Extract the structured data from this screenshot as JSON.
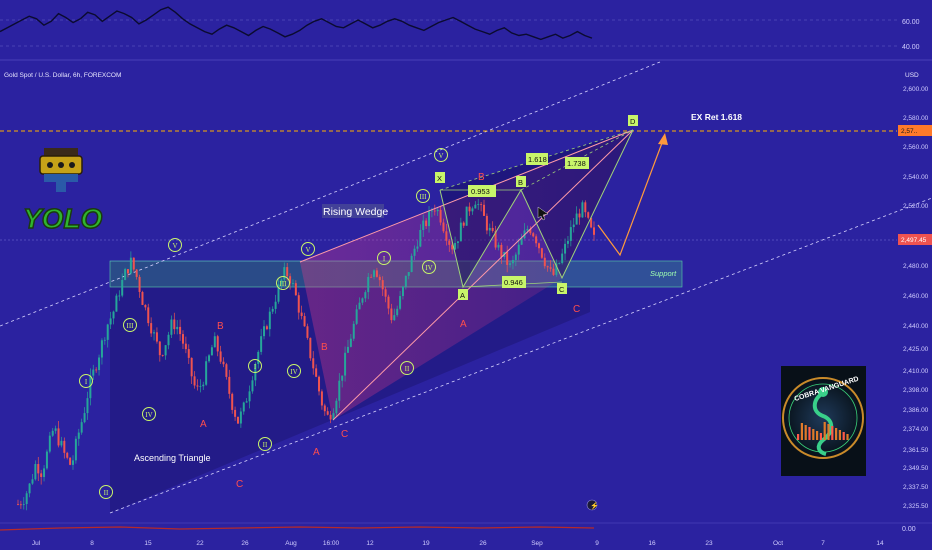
{
  "header": {
    "symbol_title": "Gold Spot / U.S. Dollar, 6h, FOREXCOM",
    "currency": "USD",
    "last_price": "2,497.45"
  },
  "colors": {
    "background": "#2b22a0",
    "candle_up": "#26a69a",
    "candle_down": "#ef5350",
    "label_green": "#c8f56a",
    "label_red": "#ff4d4d",
    "wedge_line": "#ff9aa8",
    "ex_line": "#ffb000"
  },
  "chart_data": [
    {
      "type": "line",
      "name": "rsi-indicator-pane",
      "yticks": [
        "60.00",
        "40.00"
      ],
      "ylim": [
        30,
        75
      ],
      "values": [
        52,
        55,
        58,
        61,
        64,
        62,
        57,
        60,
        66,
        63,
        59,
        62,
        67,
        65,
        60,
        64,
        68,
        66,
        63,
        58,
        61,
        65,
        69,
        71,
        67,
        62,
        58,
        55,
        52,
        50,
        54,
        57,
        55,
        52,
        49,
        53,
        56,
        54,
        51,
        48,
        50,
        53,
        57,
        60,
        62,
        59,
        56,
        55,
        58,
        61,
        58,
        55,
        57,
        60,
        62,
        60,
        57,
        55,
        53,
        56,
        59,
        61,
        63,
        60,
        57,
        54,
        52,
        50,
        53,
        55,
        51,
        49,
        50,
        48,
        46,
        48,
        50,
        47,
        49,
        52,
        49,
        47
      ]
    },
    {
      "type": "candlestick",
      "name": "gold-price",
      "ylim": [
        2318,
        2618
      ],
      "price_ticks": [
        "2,600.00",
        "2,580.00",
        "2,560.00",
        "2,540.00",
        "2,520.00",
        "2,480.00",
        "2,460.00",
        "2,440.00",
        "2,425.00",
        "2,410.00",
        "2,398.00",
        "2,386.00",
        "2,374.00",
        "2,361.50",
        "2,349.50",
        "2,337.50",
        "2,325.50"
      ],
      "price_tick_values": [
        2600,
        2580,
        2560,
        2540,
        2520,
        2480,
        2460,
        2440,
        2425,
        2410,
        2398,
        2386,
        2374,
        2361.5,
        2349.5,
        2337.5,
        2325.5
      ],
      "ex_price_tag": "2,57..",
      "x_ticks": [
        "Jul",
        "8",
        "15",
        "22",
        "26",
        "Aug",
        "16:00",
        "12",
        "19",
        "26",
        "Sep",
        "9",
        "16",
        "23",
        "Oct",
        "7",
        "14"
      ],
      "close_path": [
        2326,
        2330,
        2338,
        2352,
        2346,
        2360,
        2374,
        2366,
        2356,
        2350,
        2368,
        2382,
        2400,
        2412,
        2426,
        2440,
        2448,
        2462,
        2474,
        2482,
        2472,
        2456,
        2444,
        2432,
        2420,
        2430,
        2442,
        2438,
        2426,
        2410,
        2396,
        2402,
        2416,
        2430,
        2420,
        2404,
        2390,
        2378,
        2386,
        2400,
        2416,
        2430,
        2442,
        2454,
        2466,
        2476,
        2470,
        2456,
        2440,
        2424,
        2408,
        2392,
        2380,
        2386,
        2400,
        2416,
        2432,
        2446,
        2460,
        2472,
        2480,
        2470,
        2456,
        2444,
        2452,
        2466,
        2480,
        2494,
        2504,
        2510,
        2520,
        2514,
        2502,
        2492,
        2498,
        2510,
        2518,
        2524,
        2516,
        2506,
        2498,
        2490,
        2484,
        2478,
        2488,
        2498,
        2506,
        2500,
        2490,
        2480,
        2472,
        2480,
        2490,
        2502,
        2512,
        2518,
        2508,
        2497
      ]
    },
    {
      "type": "area",
      "name": "volume-pane",
      "yticks": [
        "0.00"
      ]
    }
  ],
  "annotations": {
    "rising_wedge": "Rising Wedge",
    "ascending_triangle": "Ascending Triangle",
    "support": "Support",
    "ex_ret": "EX Ret 1.618",
    "fib_0953": "0.953",
    "fib_1618": "1.618",
    "fib_1738": "1.738",
    "fib_0946": "0.946",
    "X": "X",
    "A": "A",
    "B": "B",
    "C": "C",
    "D": "D",
    "I": "I",
    "II": "II",
    "III": "III",
    "IV": "IV",
    "V": "V"
  },
  "logos": {
    "yolo_text": "YOLO",
    "cobra_text": "COBRA VANGUARD"
  }
}
